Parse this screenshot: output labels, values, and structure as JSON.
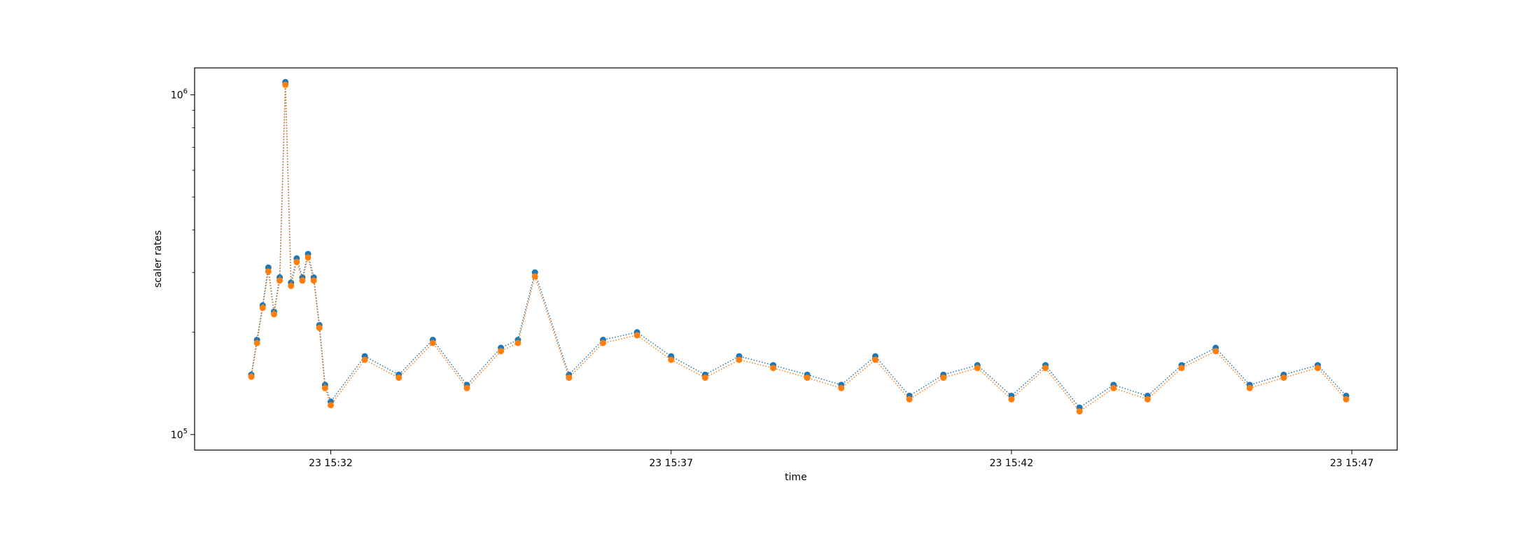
{
  "chart_data": {
    "type": "scatter",
    "xlabel": "time",
    "ylabel": "scaler rates",
    "yscale": "log",
    "ylim": [
      90000,
      1200000
    ],
    "xlim": [
      "23 15:30:00",
      "23 15:47:40"
    ],
    "x_ticks": [
      {
        "value": "23 15:32:00",
        "label": "23 15:32"
      },
      {
        "value": "23 15:37:00",
        "label": "23 15:37"
      },
      {
        "value": "23 15:42:00",
        "label": "23 15:42"
      },
      {
        "value": "23 15:47:00",
        "label": "23 15:47"
      }
    ],
    "y_ticks": [
      {
        "value": 100000,
        "base": "10",
        "exp": "5"
      },
      {
        "value": 1000000,
        "base": "10",
        "exp": "6"
      }
    ],
    "grid": false,
    "line_style": "dotted",
    "marker": "circle",
    "x": [
      "23 15:30:50",
      "23 15:30:55",
      "23 15:31:00",
      "23 15:31:05",
      "23 15:31:10",
      "23 15:31:15",
      "23 15:31:20",
      "23 15:31:25",
      "23 15:31:30",
      "23 15:31:35",
      "23 15:31:40",
      "23 15:31:45",
      "23 15:31:50",
      "23 15:31:55",
      "23 15:32:00",
      "23 15:32:30",
      "23 15:33:00",
      "23 15:33:30",
      "23 15:34:00",
      "23 15:34:30",
      "23 15:34:45",
      "23 15:35:00",
      "23 15:35:30",
      "23 15:36:00",
      "23 15:36:30",
      "23 15:37:00",
      "23 15:37:30",
      "23 15:38:00",
      "23 15:38:30",
      "23 15:39:00",
      "23 15:39:30",
      "23 15:40:00",
      "23 15:40:30",
      "23 15:41:00",
      "23 15:41:30",
      "23 15:42:00",
      "23 15:42:30",
      "23 15:43:00",
      "23 15:43:30",
      "23 15:44:00",
      "23 15:44:30",
      "23 15:45:00",
      "23 15:45:30",
      "23 15:46:00",
      "23 15:46:30",
      "23 15:46:55"
    ],
    "series": [
      {
        "color": "#1f77b4",
        "values": [
          150000,
          190000,
          240000,
          310000,
          230000,
          290000,
          1090000,
          280000,
          330000,
          290000,
          340000,
          290000,
          210000,
          140000,
          125000,
          170000,
          150000,
          190000,
          140000,
          180000,
          190000,
          300000,
          150000,
          190000,
          200000,
          170000,
          150000,
          170000,
          160000,
          150000,
          140000,
          170000,
          130000,
          150000,
          160000,
          130000,
          160000,
          120000,
          140000,
          130000,
          160000,
          180000,
          140000,
          150000,
          160000,
          130000
        ]
      },
      {
        "color": "#ff7f0e",
        "values": [
          148000,
          186000,
          236000,
          302000,
          226000,
          284000,
          1070000,
          274000,
          322000,
          284000,
          332000,
          284000,
          206000,
          137000,
          122000,
          166000,
          147000,
          186000,
          137000,
          176000,
          186000,
          292000,
          147000,
          186000,
          196000,
          166000,
          147000,
          166000,
          157000,
          147000,
          137000,
          166000,
          127000,
          147000,
          157000,
          127000,
          157000,
          117000,
          137000,
          127000,
          157000,
          176000,
          137000,
          147000,
          157000,
          127000
        ]
      }
    ]
  }
}
